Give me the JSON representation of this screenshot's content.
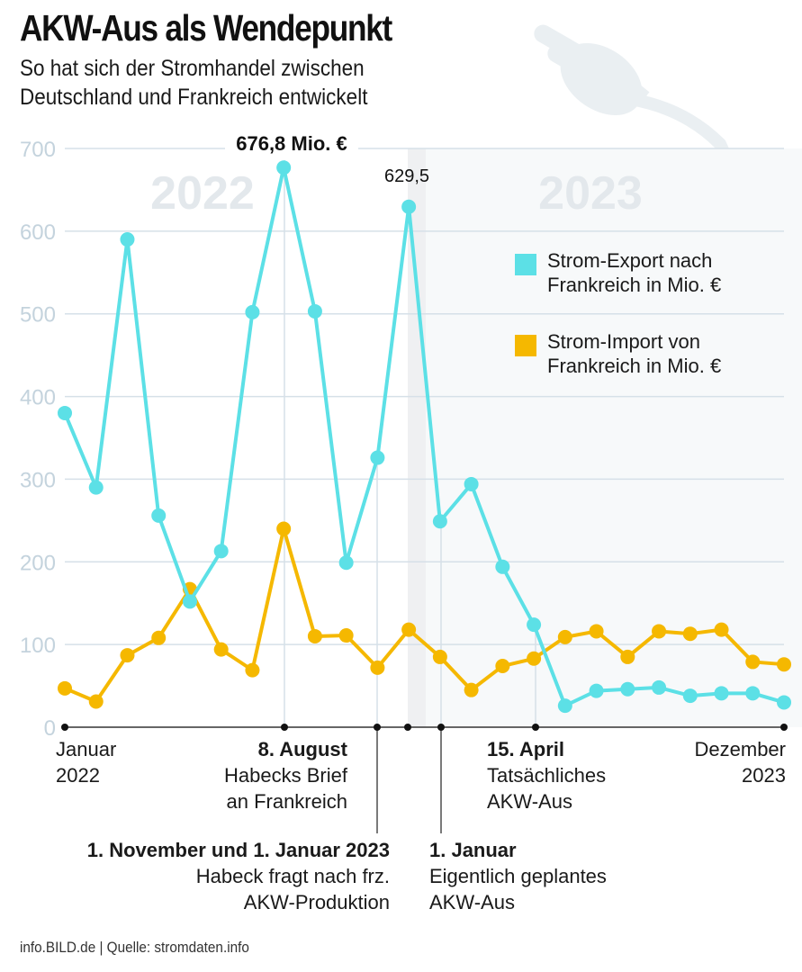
{
  "header": {
    "title": "AKW-Aus als Wendepunkt",
    "subtitle_line1": "So hat sich der Stromhandel zwischen",
    "subtitle_line2": "Deutschland und Frankreich entwickelt"
  },
  "colors": {
    "export": "#5ce0e6",
    "import": "#f5b800",
    "grid": "#d6e0e8",
    "tick_text": "#c4d3dd",
    "year_watermark": "#e3e8ec",
    "shade_2023": "#f7f9fa",
    "plug_icon": "#eaeff2"
  },
  "year_labels": [
    "2022",
    "2023"
  ],
  "annotations": {
    "max_label": "676,8 Mio. €",
    "second_peak_label": "629,5"
  },
  "timeline": {
    "jan2022": {
      "line1": "Januar",
      "line2": "2022"
    },
    "aug8": {
      "bold": "8. August",
      "line1": "Habecks Brief",
      "line2": "an Frankreich"
    },
    "nov1": {
      "bold": "1. November und 1. Januar 2023",
      "line1": "Habeck fragt nach frz.",
      "line2": "AKW-Produktion"
    },
    "jan1": {
      "bold": "1. Januar",
      "line1": "Eigentlich geplantes",
      "line2": "AKW-Aus"
    },
    "apr15": {
      "bold": "15. April",
      "line1": "Tatsächliches",
      "line2": "AKW-Aus"
    },
    "dec2023": {
      "line1": "Dezember",
      "line2": "2023"
    }
  },
  "legend": {
    "export_line1": "Strom-Export nach",
    "export_line2": "Frankreich in Mio. €",
    "import_line1": "Strom-Import von",
    "import_line2": "Frankreich in Mio. €"
  },
  "footer": {
    "source": "info.BILD.de | Quelle: stromdaten.info"
  },
  "chart_data": {
    "type": "line",
    "title": "AKW-Aus als Wendepunkt",
    "subtitle": "So hat sich der Stromhandel zwischen Deutschland und Frankreich entwickelt",
    "xlabel": "",
    "ylabel": "",
    "x": [
      "2022-01",
      "2022-02",
      "2022-03",
      "2022-04",
      "2022-05",
      "2022-06",
      "2022-07",
      "2022-08",
      "2022-09",
      "2022-10",
      "2022-11",
      "2022-12",
      "2023-01",
      "2023-02",
      "2023-03",
      "2023-04",
      "2023-05",
      "2023-06",
      "2023-07",
      "2023-08",
      "2023-09",
      "2023-10",
      "2023-11",
      "2023-12"
    ],
    "ylim": [
      0,
      700
    ],
    "yticks": [
      0,
      100,
      200,
      300,
      400,
      500,
      600,
      700
    ],
    "grid": true,
    "legend_position": "right",
    "series": [
      {
        "name": "Strom-Export nach Frankreich in Mio. €",
        "color": "#5ce0e6",
        "values": [
          380,
          290,
          590,
          256,
          152,
          213,
          502,
          676.8,
          503,
          199,
          326,
          629.5,
          249,
          294,
          194,
          124,
          26,
          44,
          46,
          48,
          38,
          41,
          41,
          30
        ]
      },
      {
        "name": "Strom-Import von Frankreich in Mio. €",
        "color": "#f5b800",
        "values": [
          47,
          31,
          87,
          108,
          167,
          94,
          69,
          240,
          110,
          111,
          72,
          118,
          85,
          45,
          74,
          83,
          109,
          116,
          85,
          116,
          113,
          118,
          79,
          76
        ]
      }
    ],
    "shaded_region": {
      "from": "2023-01",
      "to": "2023-12",
      "label": "2023"
    },
    "event_markers": [
      "2022-08-08",
      "2022-11-01",
      "2023-01-01 (geplant)",
      "2023-04-15"
    ]
  }
}
